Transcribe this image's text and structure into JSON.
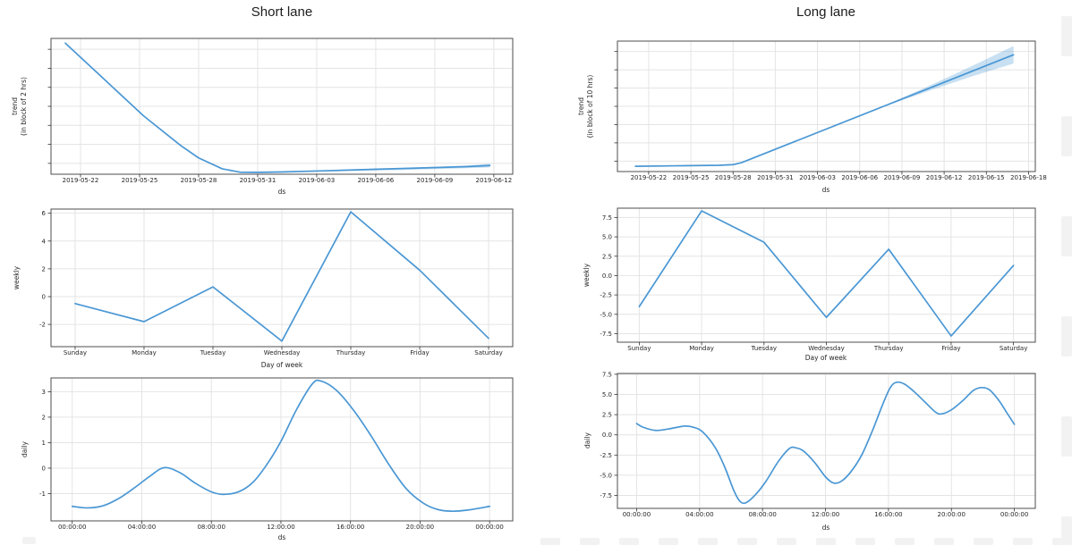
{
  "titles": {
    "left": "Short lane",
    "right": "Long lane"
  },
  "chart_data": [
    {
      "id": "short-trend",
      "type": "line",
      "title": "Short lane",
      "xlabel": "ds",
      "ylabel": "trend (in block of 2 hrs)",
      "ylabel_lines": [
        "trend",
        "(in block of 2 hrs)"
      ],
      "xlim": [
        -1.5,
        21.96
      ],
      "ylim": [
        0,
        1
      ],
      "grid": true,
      "legend": "none",
      "x_ticks": [
        {
          "v": 0,
          "label": "2019-05-22"
        },
        {
          "v": 3,
          "label": "2019-05-25"
        },
        {
          "v": 6,
          "label": "2019-05-28"
        },
        {
          "v": 9,
          "label": "2019-05-31"
        },
        {
          "v": 12,
          "label": "2019-06-03"
        },
        {
          "v": 15,
          "label": "2019-06-06"
        },
        {
          "v": 18,
          "label": "2019-06-09"
        },
        {
          "v": 21,
          "label": "2019-06-12"
        }
      ],
      "y_ticks": [
        {
          "v": 0.08,
          "label": ""
        },
        {
          "v": 0.22,
          "label": ""
        },
        {
          "v": 0.36,
          "label": ""
        },
        {
          "v": 0.5,
          "label": ""
        },
        {
          "v": 0.64,
          "label": ""
        },
        {
          "v": 0.78,
          "label": ""
        },
        {
          "v": 0.92,
          "label": ""
        }
      ],
      "smooth": false,
      "line": [
        [
          -0.77,
          0.965
        ],
        [
          0.9,
          0.74
        ],
        [
          3.2,
          0.43
        ],
        [
          5.1,
          0.21
        ],
        [
          6.0,
          0.12
        ],
        [
          7.2,
          0.04
        ],
        [
          8.1,
          0.015
        ],
        [
          9.0,
          0.013
        ],
        [
          10.2,
          0.016
        ],
        [
          12.6,
          0.026
        ],
        [
          14.9,
          0.036
        ],
        [
          17.3,
          0.046
        ],
        [
          19.6,
          0.056
        ],
        [
          20.8,
          0.064
        ]
      ],
      "band": {
        "x": [
          8.1,
          12.6,
          16.0,
          19.6,
          20.8
        ],
        "upper": [
          0.019,
          0.031,
          0.044,
          0.063,
          0.078
        ],
        "lower": [
          0.011,
          0.021,
          0.03,
          0.044,
          0.05
        ]
      },
      "line_color": "#4a97d4",
      "band_color": "rgba(74,151,212,0.30)"
    },
    {
      "id": "long-trend",
      "type": "line",
      "title": "Long lane",
      "xlabel": "ds",
      "ylabel": "trend (in block of 10 hrs)",
      "ylabel_lines": [
        "trend",
        "(in block of 10 hrs)"
      ],
      "xlim": [
        -2.22,
        27.48
      ],
      "ylim": [
        0,
        1
      ],
      "grid": true,
      "legend": "none",
      "x_ticks": [
        {
          "v": 0,
          "label": "2019-05-22"
        },
        {
          "v": 3,
          "label": "2019-05-25"
        },
        {
          "v": 6,
          "label": "2019-05-28"
        },
        {
          "v": 9,
          "label": "2019-05-31"
        },
        {
          "v": 12,
          "label": "2019-06-03"
        },
        {
          "v": 15,
          "label": "2019-06-06"
        },
        {
          "v": 18,
          "label": "2019-06-09"
        },
        {
          "v": 21,
          "label": "2019-06-12"
        },
        {
          "v": 24,
          "label": "2019-06-15"
        },
        {
          "v": 27,
          "label": "2019-06-18"
        }
      ],
      "y_ticks": [
        {
          "v": 0.08,
          "label": ""
        },
        {
          "v": 0.22,
          "label": ""
        },
        {
          "v": 0.36,
          "label": ""
        },
        {
          "v": 0.5,
          "label": ""
        },
        {
          "v": 0.64,
          "label": ""
        },
        {
          "v": 0.78,
          "label": ""
        },
        {
          "v": 0.92,
          "label": ""
        }
      ],
      "smooth": false,
      "line": [
        [
          -0.94,
          0.04
        ],
        [
          2.0,
          0.044
        ],
        [
          5.0,
          0.048
        ],
        [
          6.0,
          0.053
        ],
        [
          6.6,
          0.068
        ],
        [
          25.93,
          0.895
        ]
      ],
      "band": {
        "x": [
          17.0,
          20.0,
          23.0,
          25.93
        ],
        "upper": [
          0.518,
          0.66,
          0.81,
          0.962
        ],
        "lower": [
          0.508,
          0.622,
          0.73,
          0.828
        ]
      },
      "line_color": "#4a97d4",
      "band_color": "rgba(74,151,212,0.30)"
    },
    {
      "id": "short-weekly",
      "type": "line",
      "xlabel": "Day of week",
      "ylabel": "weekly",
      "ylabel_lines": [
        "weekly"
      ],
      "categories": [
        "Sunday",
        "Monday",
        "Tuesday",
        "Wednesday",
        "Thursday",
        "Friday",
        "Saturday"
      ],
      "values": [
        -0.5,
        -1.8,
        0.7,
        -3.2,
        6.1,
        1.9,
        -3.0
      ],
      "xlim": [
        -0.35,
        6.35
      ],
      "ylim": [
        -3.6,
        6.3
      ],
      "grid": true,
      "legend": "none",
      "x_ticks": [
        {
          "v": 0,
          "label": "Sunday"
        },
        {
          "v": 1,
          "label": "Monday"
        },
        {
          "v": 2,
          "label": "Tuesday"
        },
        {
          "v": 3,
          "label": "Wednesday"
        },
        {
          "v": 4,
          "label": "Thursday"
        },
        {
          "v": 5,
          "label": "Friday"
        },
        {
          "v": 6,
          "label": "Saturday"
        }
      ],
      "y_ticks": [
        {
          "v": 6,
          "label": "6"
        },
        {
          "v": 4,
          "label": "4"
        },
        {
          "v": 2,
          "label": "2"
        },
        {
          "v": 0,
          "label": "0"
        },
        {
          "v": -2,
          "label": "-2"
        }
      ],
      "smooth": false,
      "line": [
        [
          0,
          -0.5
        ],
        [
          1,
          -1.8
        ],
        [
          2,
          0.7
        ],
        [
          3,
          -3.2
        ],
        [
          4,
          6.1
        ],
        [
          5,
          1.9
        ],
        [
          6,
          -3.0
        ]
      ],
      "line_color": "#4a97d4"
    },
    {
      "id": "long-weekly",
      "type": "line",
      "xlabel": "Day of week",
      "ylabel": "weekly",
      "ylabel_lines": [
        "weekly"
      ],
      "categories": [
        "Sunday",
        "Monday",
        "Tuesday",
        "Wednesday",
        "Thursday",
        "Friday",
        "Saturday"
      ],
      "values": [
        -4.0,
        8.35,
        4.3,
        -5.4,
        3.4,
        -7.8,
        1.3
      ],
      "xlim": [
        -0.35,
        6.35
      ],
      "ylim": [
        -8.6,
        8.7
      ],
      "grid": true,
      "legend": "none",
      "x_ticks": [
        {
          "v": 0,
          "label": "Sunday"
        },
        {
          "v": 1,
          "label": "Monday"
        },
        {
          "v": 2,
          "label": "Tuesday"
        },
        {
          "v": 3,
          "label": "Wednesday"
        },
        {
          "v": 4,
          "label": "Thursday"
        },
        {
          "v": 5,
          "label": "Friday"
        },
        {
          "v": 6,
          "label": "Saturday"
        }
      ],
      "y_ticks": [
        {
          "v": 7.5,
          "label": "7.5"
        },
        {
          "v": 5.0,
          "label": "5.0"
        },
        {
          "v": 2.5,
          "label": "2.5"
        },
        {
          "v": 0.0,
          "label": "0.0"
        },
        {
          "v": -2.5,
          "label": "-2.5"
        },
        {
          "v": -5.0,
          "label": "-5.0"
        },
        {
          "v": -7.5,
          "label": "-7.5"
        }
      ],
      "smooth": false,
      "line": [
        [
          0,
          -4.0
        ],
        [
          1,
          8.35
        ],
        [
          2,
          4.3
        ],
        [
          3,
          -5.4
        ],
        [
          4,
          3.4
        ],
        [
          5,
          -7.8
        ],
        [
          6,
          1.3
        ]
      ],
      "line_color": "#4a97d4"
    },
    {
      "id": "short-daily",
      "type": "line",
      "xlabel": "ds",
      "ylabel": "daily",
      "ylabel_lines": [
        "daily"
      ],
      "xlim": [
        -1.22,
        25.33
      ],
      "ylim": [
        -2.07,
        3.54
      ],
      "grid": true,
      "legend": "none",
      "x_ticks": [
        {
          "v": 0,
          "label": "00:00:00"
        },
        {
          "v": 4,
          "label": "04:00:00"
        },
        {
          "v": 8,
          "label": "08:00:00"
        },
        {
          "v": 12,
          "label": "12:00:00"
        },
        {
          "v": 16,
          "label": "16:00:00"
        },
        {
          "v": 20,
          "label": "20:00:00"
        },
        {
          "v": 24,
          "label": "00:00:00"
        }
      ],
      "y_ticks": [
        {
          "v": 3,
          "label": "3"
        },
        {
          "v": 2,
          "label": "2"
        },
        {
          "v": 1,
          "label": "1"
        },
        {
          "v": 0,
          "label": "0"
        },
        {
          "v": -1,
          "label": "-1"
        }
      ],
      "smooth": true,
      "line": [
        [
          0,
          -1.5
        ],
        [
          0.9,
          -1.56
        ],
        [
          1.8,
          -1.47
        ],
        [
          2.7,
          -1.18
        ],
        [
          3.6,
          -0.76
        ],
        [
          4.5,
          -0.3
        ],
        [
          5.3,
          0.02
        ],
        [
          6.2,
          -0.18
        ],
        [
          7.1,
          -0.6
        ],
        [
          8.0,
          -0.93
        ],
        [
          8.7,
          -1.03
        ],
        [
          9.6,
          -0.92
        ],
        [
          10.4,
          -0.55
        ],
        [
          11.2,
          0.15
        ],
        [
          12.0,
          1.05
        ],
        [
          12.9,
          2.3
        ],
        [
          13.8,
          3.3
        ],
        [
          14.3,
          3.42
        ],
        [
          15.2,
          3.05
        ],
        [
          16.2,
          2.25
        ],
        [
          17.2,
          1.25
        ],
        [
          18.2,
          0.15
        ],
        [
          19.2,
          -0.8
        ],
        [
          20.2,
          -1.38
        ],
        [
          21.0,
          -1.62
        ],
        [
          21.8,
          -1.69
        ],
        [
          22.8,
          -1.64
        ],
        [
          24,
          -1.5
        ]
      ],
      "line_color": "#4a97d4"
    },
    {
      "id": "long-daily",
      "type": "line",
      "xlabel": "ds",
      "ylabel": "daily",
      "ylabel_lines": [
        "daily"
      ],
      "xlim": [
        -1.22,
        25.33
      ],
      "ylim": [
        -9.1,
        7.6
      ],
      "grid": true,
      "legend": "none",
      "x_ticks": [
        {
          "v": 0,
          "label": "00:00:00"
        },
        {
          "v": 4,
          "label": "04:00:00"
        },
        {
          "v": 8,
          "label": "08:00:00"
        },
        {
          "v": 12,
          "label": "12:00:00"
        },
        {
          "v": 16,
          "label": "16:00:00"
        },
        {
          "v": 20,
          "label": "20:00:00"
        },
        {
          "v": 24,
          "label": "00:00:00"
        }
      ],
      "y_ticks": [
        {
          "v": 7.5,
          "label": "7.5"
        },
        {
          "v": 5.0,
          "label": "5.0"
        },
        {
          "v": 2.5,
          "label": "2.5"
        },
        {
          "v": 0.0,
          "label": "0.0"
        },
        {
          "v": -2.5,
          "label": "-2.5"
        },
        {
          "v": -5.0,
          "label": "-5.0"
        },
        {
          "v": -7.5,
          "label": "-7.5"
        }
      ],
      "smooth": true,
      "line": [
        [
          0,
          1.4
        ],
        [
          0.4,
          0.95
        ],
        [
          1.2,
          0.55
        ],
        [
          2.0,
          0.72
        ],
        [
          3.0,
          1.08
        ],
        [
          3.6,
          0.95
        ],
        [
          4.2,
          0.35
        ],
        [
          5.0,
          -1.6
        ],
        [
          5.6,
          -4.0
        ],
        [
          6.2,
          -7.0
        ],
        [
          6.6,
          -8.3
        ],
        [
          7.0,
          -8.35
        ],
        [
          7.6,
          -7.3
        ],
        [
          8.2,
          -5.8
        ],
        [
          9.0,
          -3.3
        ],
        [
          9.7,
          -1.7
        ],
        [
          10.1,
          -1.6
        ],
        [
          10.6,
          -2.0
        ],
        [
          11.3,
          -3.4
        ],
        [
          12.0,
          -5.2
        ],
        [
          12.5,
          -5.95
        ],
        [
          13.0,
          -5.75
        ],
        [
          13.6,
          -4.6
        ],
        [
          14.3,
          -2.5
        ],
        [
          15.0,
          0.6
        ],
        [
          15.6,
          3.6
        ],
        [
          16.1,
          5.8
        ],
        [
          16.5,
          6.5
        ],
        [
          17.0,
          6.3
        ],
        [
          17.6,
          5.4
        ],
        [
          18.3,
          4.1
        ],
        [
          19.0,
          2.8
        ],
        [
          19.4,
          2.6
        ],
        [
          20.0,
          3.1
        ],
        [
          20.7,
          4.2
        ],
        [
          21.4,
          5.5
        ],
        [
          21.9,
          5.85
        ],
        [
          22.4,
          5.6
        ],
        [
          23.0,
          4.3
        ],
        [
          23.5,
          2.8
        ],
        [
          24,
          1.3
        ]
      ],
      "line_color": "#4a97d4"
    }
  ],
  "style_colors": {
    "line_blue": "#4a97d4",
    "band_blue": "rgba(74,151,212,0.30)",
    "grid": "#e4e4e4",
    "spine": "#4d4d4d",
    "tick_text": "#262626"
  }
}
